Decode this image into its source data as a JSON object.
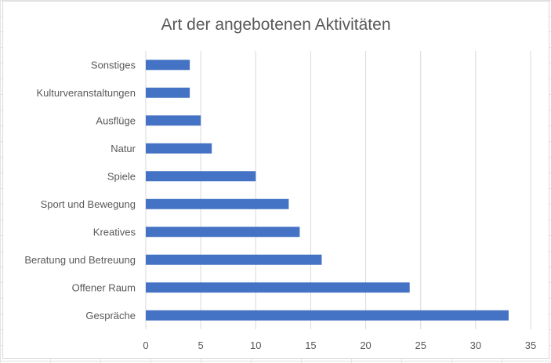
{
  "chart_data": {
    "type": "bar",
    "orientation": "horizontal",
    "title": "Art der angebotenen Aktivitäten",
    "categories": [
      "Gespräche",
      "Offener Raum",
      "Beratung und Betreuung",
      "Kreatives",
      "Sport und Bewegung",
      "Spiele",
      "Natur",
      "Ausflüge",
      "Kulturveranstaltungen",
      "Sonstiges"
    ],
    "values": [
      33,
      24,
      16,
      14,
      13,
      10,
      6,
      5,
      4,
      4
    ],
    "xlabel": "",
    "ylabel": "",
    "xlim": [
      0,
      35
    ],
    "xticks": [
      0,
      5,
      10,
      15,
      20,
      25,
      30,
      35
    ],
    "grid": true,
    "bar_color": "#4472c4",
    "grid_color": "#d9d9d9"
  }
}
